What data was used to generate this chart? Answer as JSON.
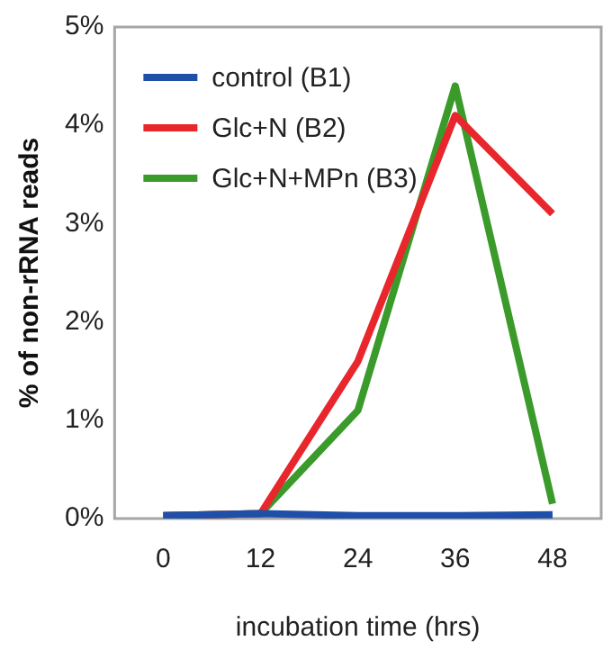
{
  "chart_data": {
    "type": "line",
    "xlabel": "incubation time (hrs)",
    "ylabel": "% of non-rRNA reads",
    "categories": [
      "0",
      "12",
      "24",
      "36",
      "48"
    ],
    "series": [
      {
        "name": "control (B1)",
        "color": "#1f4fa8",
        "values": [
          0.03,
          0.05,
          0.03,
          0.03,
          0.04
        ]
      },
      {
        "name": "Glc+N (B2)",
        "color": "#e8262c",
        "values": [
          0.03,
          0.05,
          1.6,
          4.1,
          3.1
        ]
      },
      {
        "name": "Glc+N+MPn (B3)",
        "color": "#3a9a2a",
        "values": [
          0.03,
          0.05,
          1.1,
          4.4,
          0.15
        ]
      }
    ],
    "ylim": [
      0,
      5
    ],
    "yticks": [
      {
        "value": 0,
        "label": "0%"
      },
      {
        "value": 1,
        "label": "1%"
      },
      {
        "value": 2,
        "label": "2%"
      },
      {
        "value": 3,
        "label": "3%"
      },
      {
        "value": 4,
        "label": "4%"
      },
      {
        "value": 5,
        "label": "5%"
      }
    ],
    "grid": false,
    "legend": "top left",
    "marker": "none",
    "line_style": "solid"
  }
}
